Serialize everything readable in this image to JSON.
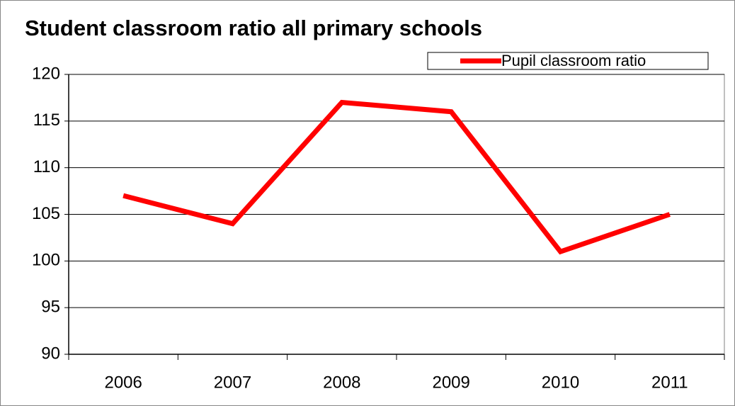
{
  "chart_data": {
    "type": "line",
    "title": "Student classroom ratio all primary schools",
    "categories": [
      "2006",
      "2007",
      "2008",
      "2009",
      "2010",
      "2011"
    ],
    "series": [
      {
        "name": "Pupil classroom ratio",
        "color": "#ff0000",
        "values": [
          107,
          104,
          117,
          116,
          101,
          105
        ]
      }
    ],
    "ylim": [
      90,
      120
    ],
    "yticks": [
      90,
      95,
      100,
      105,
      110,
      115,
      120
    ],
    "grid": true,
    "legend": "upper right"
  }
}
